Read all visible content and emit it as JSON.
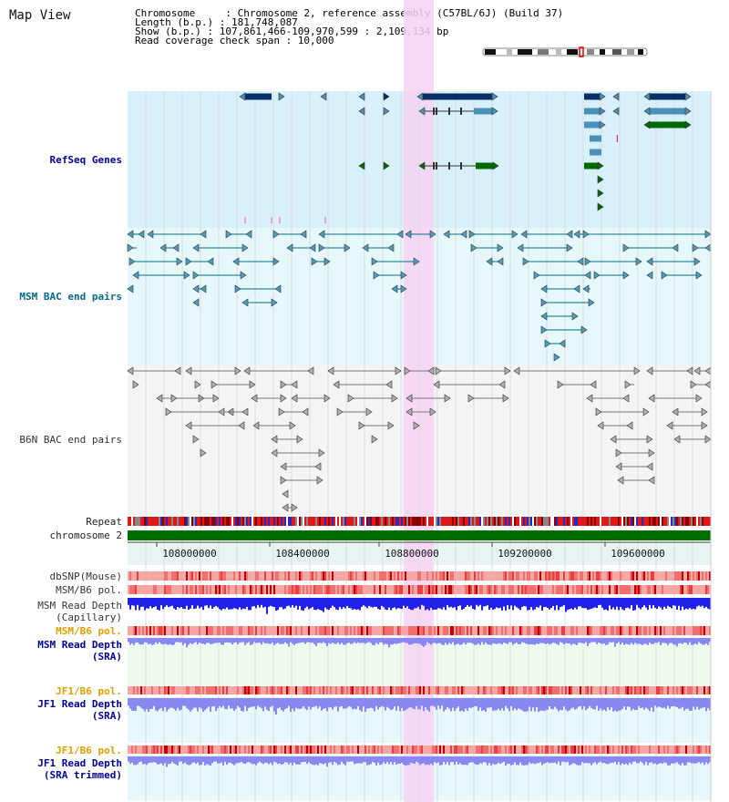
{
  "view_title": "Map View",
  "info": {
    "chromosome": "Chromosome     : Chromosome 2, reference assembly (C57BL/6J) (Build 37)",
    "length": "Length (b.p.) : 181,748,087",
    "show": "Show (b.p.) : 107,861,466-109,970,599 : 2,109,134 bp",
    "read_span": "Read coverage check span : 10,000"
  },
  "tracks": {
    "refseq": "RefSeq Genes",
    "msm_bac": "MSM BAC end pairs",
    "b6n_bac": "B6N BAC end pairs",
    "repeat": "Repeat",
    "chromosome": "chromosome 2",
    "dbsnp": "dbSNP(Mouse)",
    "msm_pol": "MSM/B6 pol.",
    "msm_depth_cap": "MSM Read Depth",
    "msm_depth_cap2": "(Capillary)",
    "msm_pol_sra": "MSM/B6 pol.",
    "msm_depth_sra": "MSM Read Depth",
    "msm_depth_sra2": "(SRA)",
    "jf1_pol": "JF1/B6 pol.",
    "jf1_depth": "JF1 Read Depth",
    "jf1_depth2": "(SRA)",
    "jf1_pol_trim": "JF1/B6 pol.",
    "jf1_depth_trim": "JF1 Read Depth",
    "jf1_depth_trim2": "(SRA trimmed)"
  },
  "axis_ticks": [
    "108000000",
    "108400000",
    "108800000",
    "109200000",
    "109600000"
  ],
  "colors": {
    "refseq_bg": "#d8f0fa",
    "msm_bg": "#e6f8fa",
    "b6n_bg": "#f4f4f4",
    "highlight": "#f7d2f3",
    "gene_dark": "#0a2e66",
    "gene_mid": "#4a90b8",
    "gene_green": "#006a00",
    "msm_line": "#006e8c",
    "b6n_line": "#777777",
    "depth_blue": "#2020e8",
    "depth_sra": "#8888f0",
    "pol_red": "#f04a4a",
    "chrom_green": "#006e00"
  }
}
